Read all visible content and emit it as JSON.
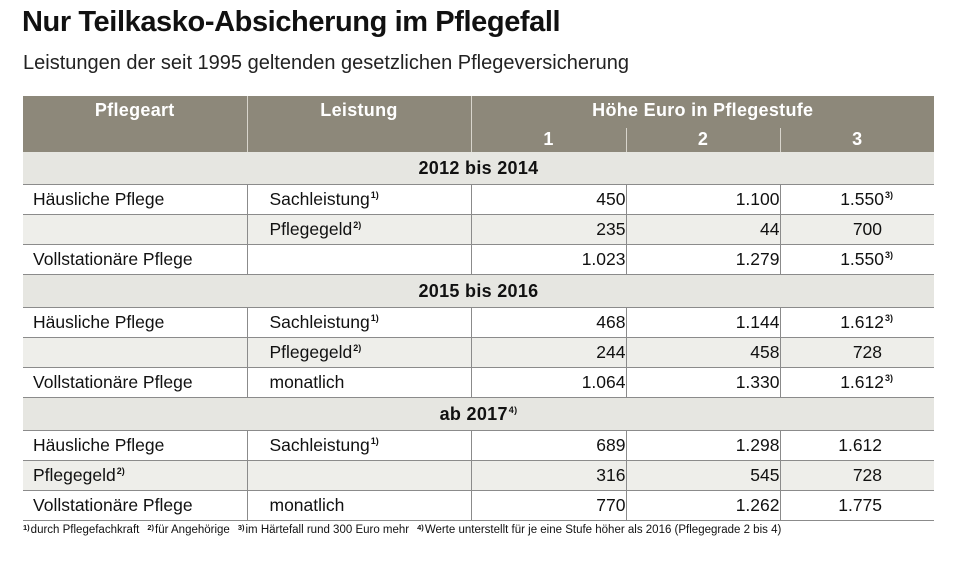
{
  "title": "Nur Teilkasko-Absicherung im Pflegefall",
  "subtitle": "Leistungen der seit 1995 geltenden gesetzlichen Pflegeversicherung",
  "header": {
    "col_pflegeart": "Pflegeart",
    "col_leistung": "Leistung",
    "col_hoehe": "Höhe Euro in Pflegestufe",
    "stufe_1": "1",
    "stufe_2": "2",
    "stufe_3": "3"
  },
  "sections": [
    {
      "title": "2012 bis 2014",
      "title_sup": "",
      "rows": [
        {
          "pflegeart": "Häusliche Pflege",
          "leistung": "Sachleistung",
          "leistung_sup": "1)",
          "v1": "450",
          "v2": "1.100",
          "v3": "1.550",
          "v3_sup": "3)"
        },
        {
          "pflegeart": "",
          "leistung": "Pflegegeld",
          "leistung_sup": "2)",
          "v1": "235",
          "v2": "44",
          "v3": "700",
          "v3_sup": ""
        },
        {
          "pflegeart": "Vollstationäre Pflege",
          "leistung": "",
          "leistung_sup": "",
          "v1": "1.023",
          "v2": "1.279",
          "v3": "1.550",
          "v3_sup": "3)"
        }
      ]
    },
    {
      "title": "2015 bis 2016",
      "title_sup": "",
      "rows": [
        {
          "pflegeart": "Häusliche Pflege",
          "leistung": "Sachleistung",
          "leistung_sup": "1)",
          "v1": "468",
          "v2": "1.144",
          "v3": "1.612",
          "v3_sup": "3)"
        },
        {
          "pflegeart": "",
          "leistung": "Pflegegeld",
          "leistung_sup": "2)",
          "v1": "244",
          "v2": "458",
          "v3": "728",
          "v3_sup": ""
        },
        {
          "pflegeart": "Vollstationäre Pflege",
          "leistung": "monatlich",
          "leistung_sup": "",
          "v1": "1.064",
          "v2": "1.330",
          "v3": "1.612",
          "v3_sup": "3)"
        }
      ]
    },
    {
      "title": "ab 2017",
      "title_sup": "4)",
      "rows": [
        {
          "pflegeart": "Häusliche Pflege",
          "leistung": "Sachleistung",
          "leistung_sup": "1)",
          "v1": "689",
          "v2": "1.298",
          "v3": "1.612",
          "v3_sup": ""
        },
        {
          "pflegeart": "Pflegegeld",
          "pflegeart_sup": "2)",
          "leistung": "",
          "leistung_sup": "",
          "v1": "316",
          "v2": "545",
          "v3": "728",
          "v3_sup": ""
        },
        {
          "pflegeart": "Vollstationäre Pflege",
          "leistung": "monatlich",
          "leistung_sup": "",
          "v1": "770",
          "v2": "1.262",
          "v3": "1.775",
          "v3_sup": ""
        }
      ]
    }
  ],
  "footnotes": [
    {
      "mark": "1)",
      "text": "durch Pflegefachkraft"
    },
    {
      "mark": "2)",
      "text": "für Angehörige"
    },
    {
      "mark": "3)",
      "text": "im Härtefall rund 300 Euro mehr"
    },
    {
      "mark": "4)",
      "text": "Werte unterstellt für je eine Stufe höher als 2016 (Pflegegrade 2 bis 4)"
    }
  ],
  "colors": {
    "header_bg": "#8d887a",
    "section_bg": "#e6e6e1",
    "alt_row_bg": "#eeeeea",
    "rule": "#8b8b8b"
  }
}
